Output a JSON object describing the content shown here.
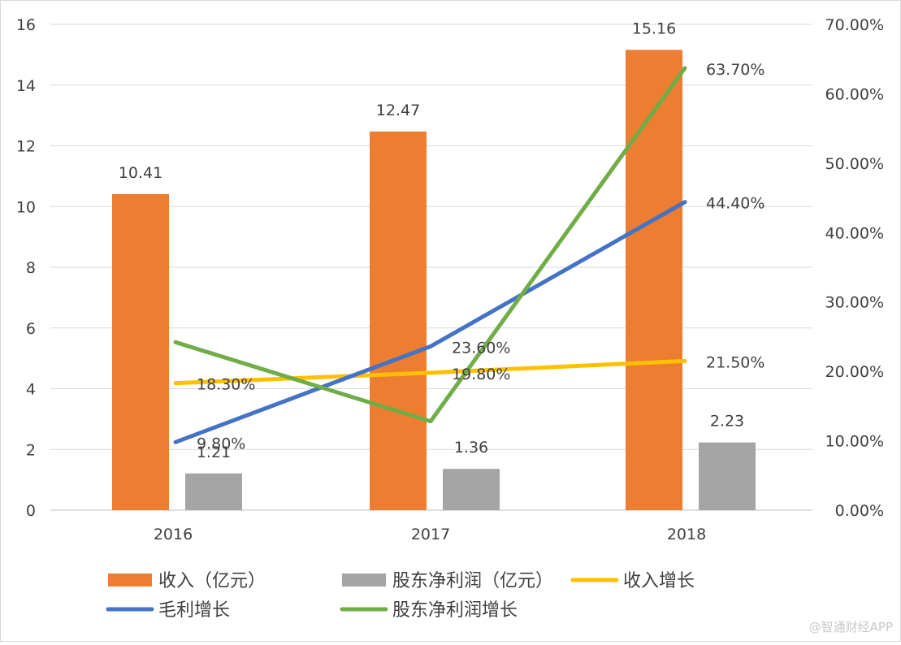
{
  "chart_data": {
    "type": "bar",
    "categories": [
      "2016",
      "2017",
      "2018"
    ],
    "series": [
      {
        "name": "收入（亿元）",
        "kind": "bar",
        "axis": "left",
        "color": "#ED7D31",
        "values": [
          10.41,
          12.47,
          15.16
        ],
        "labels": [
          "10.41",
          "12.47",
          "15.16"
        ]
      },
      {
        "name": "股东净利润（亿元）",
        "kind": "bar",
        "axis": "left",
        "color": "#A5A5A5",
        "values": [
          1.21,
          1.36,
          2.23
        ],
        "labels": [
          "1.21",
          "1.36",
          "2.23"
        ]
      },
      {
        "name": "收入增长",
        "kind": "line",
        "axis": "right",
        "color": "#FFC000",
        "values": [
          18.3,
          19.8,
          21.5
        ],
        "labels": [
          "18.30%",
          "19.80%",
          "21.50%"
        ]
      },
      {
        "name": "毛利增长",
        "kind": "line",
        "axis": "right",
        "color": "#4472C4",
        "values": [
          9.8,
          23.6,
          44.4
        ],
        "labels": [
          "9.80%",
          "23.60%",
          "44.40%"
        ]
      },
      {
        "name": "股东净利润增长",
        "kind": "line",
        "axis": "right",
        "color": "#70AD47",
        "values": [
          24.2,
          12.8,
          63.7
        ],
        "labels": [
          "",
          "",
          "63.70%"
        ]
      }
    ],
    "y_left": {
      "min": 0,
      "max": 16,
      "ticks": [
        "0",
        "2",
        "4",
        "6",
        "8",
        "10",
        "12",
        "14",
        "16"
      ]
    },
    "y_right": {
      "min": 0,
      "max": 70,
      "ticks": [
        "0.00%",
        "10.00%",
        "20.00%",
        "30.00%",
        "40.00%",
        "50.00%",
        "60.00%",
        "70.00%"
      ]
    },
    "grid": true,
    "legend_position": "bottom"
  },
  "watermark": "@智通财经APP"
}
